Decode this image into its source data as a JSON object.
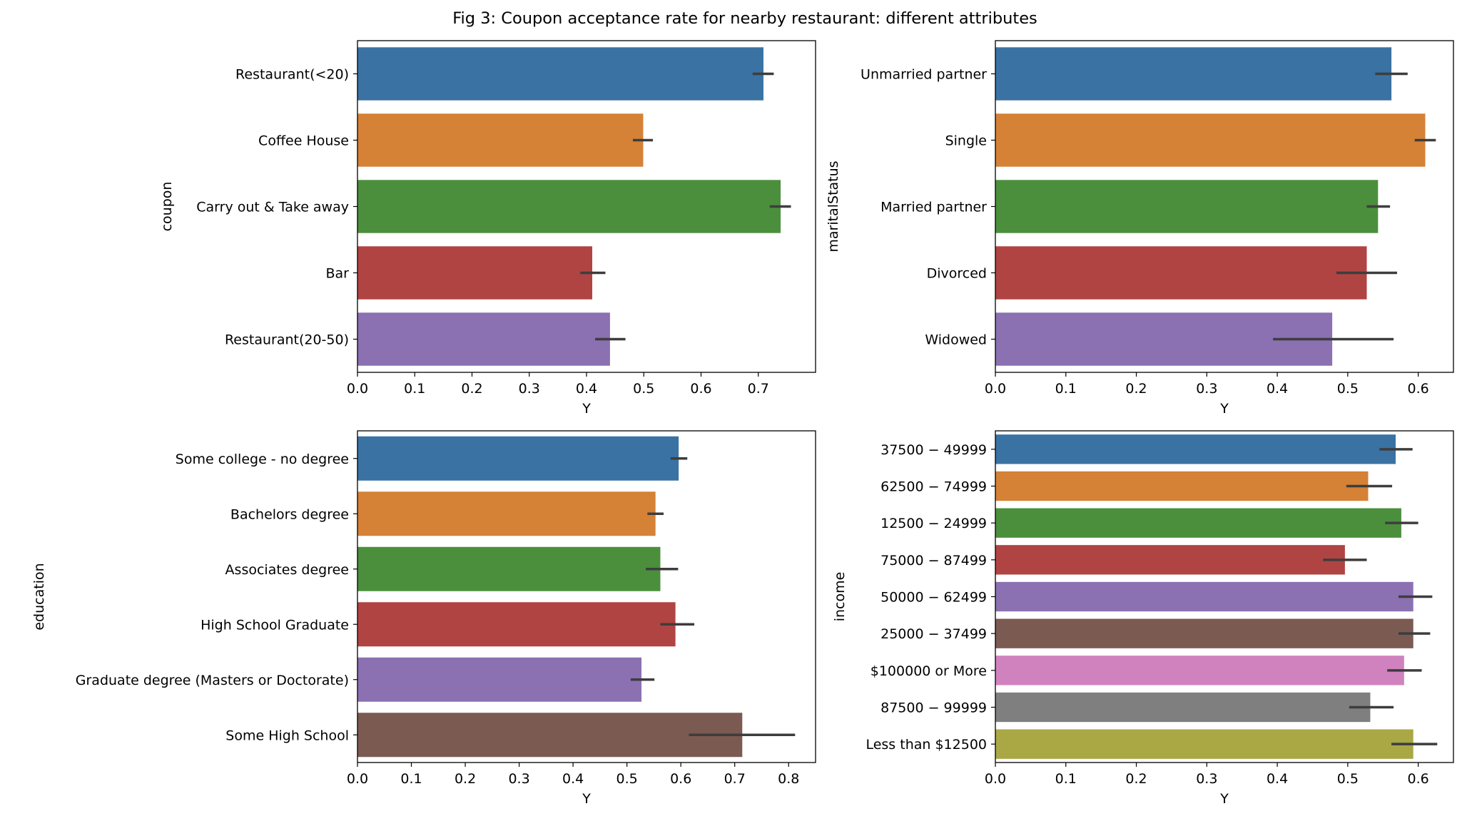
{
  "title": "Fig 3: Coupon acceptance rate for nearby restaurant: different attributes",
  "colors": [
    "#3a72a3",
    "#d58136",
    "#4b8f3d",
    "#b04443",
    "#8b70b2",
    "#7b5a52",
    "#d082bf",
    "#7f7f7f",
    "#a9a845"
  ],
  "chart_data": [
    {
      "type": "bar",
      "orientation": "horizontal",
      "ylabel": "coupon",
      "xlabel": "Y",
      "xlim": [
        0,
        0.8
      ],
      "xticks": [
        "0.0",
        "0.1",
        "0.2",
        "0.3",
        "0.4",
        "0.5",
        "0.6",
        "0.7"
      ],
      "categories": [
        "Restaurant(<20)",
        "Coffee House",
        "Carry out & Take away",
        "Bar",
        "Restaurant(20-50)"
      ],
      "values": [
        0.709,
        0.499,
        0.739,
        0.41,
        0.441
      ],
      "error_low": [
        0.69,
        0.481,
        0.72,
        0.389,
        0.415
      ],
      "error_high": [
        0.727,
        0.516,
        0.757,
        0.433,
        0.468
      ]
    },
    {
      "type": "bar",
      "orientation": "horizontal",
      "ylabel": "maritalStatus",
      "xlabel": "Y",
      "xlim": [
        0,
        0.65
      ],
      "xticks": [
        "0.0",
        "0.1",
        "0.2",
        "0.3",
        "0.4",
        "0.5",
        "0.6"
      ],
      "categories": [
        "Unmarried partner",
        "Single",
        "Married partner",
        "Divorced",
        "Widowed"
      ],
      "values": [
        0.562,
        0.61,
        0.543,
        0.527,
        0.478
      ],
      "error_low": [
        0.539,
        0.595,
        0.527,
        0.484,
        0.394
      ],
      "error_high": [
        0.585,
        0.625,
        0.56,
        0.57,
        0.565
      ]
    },
    {
      "type": "bar",
      "orientation": "horizontal",
      "ylabel": "education",
      "xlabel": "Y",
      "xlim": [
        0,
        0.85
      ],
      "xticks": [
        "0.0",
        "0.1",
        "0.2",
        "0.3",
        "0.4",
        "0.5",
        "0.6",
        "0.7",
        "0.8"
      ],
      "categories": [
        "Some college - no degree",
        "Bachelors degree",
        "Associates degree",
        "High School Graduate",
        "Graduate degree (Masters or Doctorate)",
        "Some High School"
      ],
      "values": [
        0.596,
        0.553,
        0.562,
        0.59,
        0.527,
        0.714
      ],
      "error_low": [
        0.581,
        0.538,
        0.535,
        0.562,
        0.507,
        0.615
      ],
      "error_high": [
        0.612,
        0.568,
        0.595,
        0.625,
        0.551,
        0.812
      ]
    },
    {
      "type": "bar",
      "orientation": "horizontal",
      "ylabel": "income",
      "xlabel": "Y",
      "xlim": [
        0,
        0.65
      ],
      "xticks": [
        "0.0",
        "0.1",
        "0.2",
        "0.3",
        "0.4",
        "0.5",
        "0.6"
      ],
      "categories": [
        "$37500 - $49999",
        "$62500 - $74999",
        "$12500 - $24999",
        "$75000 - $87499",
        "$50000 - $62499",
        "$25000 - $37499",
        "$100000 or More",
        "$87500 - $99999",
        "Less than $12500"
      ],
      "display_labels": [
        "37500 − 49999",
        "62500 − 74999",
        "12500 − 24999",
        "75000 − 87499",
        "50000 − 62499",
        "25000 − 37499",
        "$100000 or More",
        "87500 − 99999",
        "Less than $12500"
      ],
      "values": [
        0.568,
        0.529,
        0.576,
        0.496,
        0.593,
        0.593,
        0.58,
        0.532,
        0.593
      ],
      "error_low": [
        0.545,
        0.498,
        0.553,
        0.465,
        0.572,
        0.572,
        0.556,
        0.502,
        0.562
      ],
      "error_high": [
        0.592,
        0.563,
        0.6,
        0.527,
        0.62,
        0.617,
        0.605,
        0.565,
        0.627
      ]
    }
  ]
}
